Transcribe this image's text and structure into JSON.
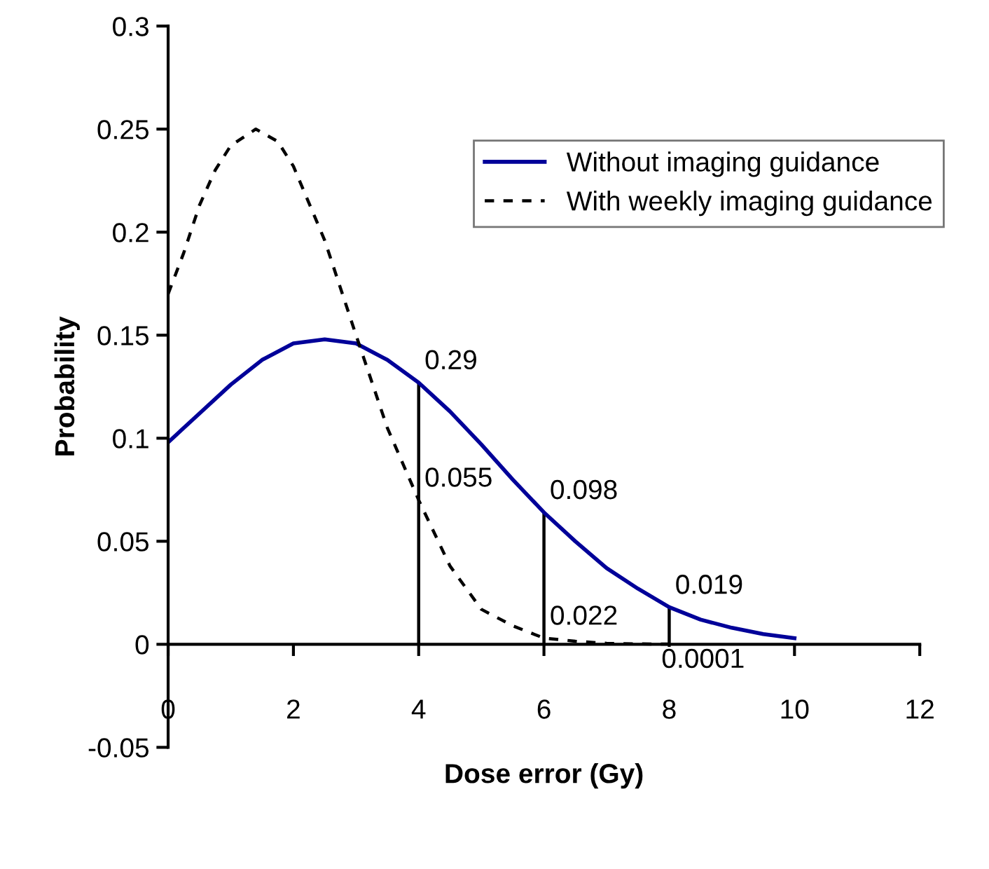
{
  "chart_data": {
    "type": "line",
    "xlabel": "Dose error (Gy)",
    "ylabel": "Probability",
    "xlim": [
      0,
      12
    ],
    "xticks": [
      0,
      2,
      4,
      6,
      8,
      10,
      12
    ],
    "ylim": [
      -0.05,
      0.3
    ],
    "yticks": [
      -0.05,
      0,
      0.05,
      0.1,
      0.15,
      0.2,
      0.25,
      0.3
    ],
    "legend": "top right",
    "grid": false,
    "marker": "none",
    "series": [
      {
        "name": "Without imaging guidance",
        "color": "#000099",
        "line_style": "solid",
        "x": [
          0,
          0.5,
          1,
          1.5,
          2,
          2.5,
          3,
          3.5,
          4,
          4.5,
          5,
          5.5,
          6,
          6.5,
          7,
          7.5,
          8,
          8.5,
          9,
          9.5,
          10
        ],
        "values": [
          0.098,
          0.112,
          0.126,
          0.138,
          0.146,
          0.148,
          0.146,
          0.138,
          0.127,
          0.113,
          0.097,
          0.08,
          0.064,
          0.05,
          0.037,
          0.027,
          0.018,
          0.012,
          0.008,
          0.005,
          0.003
        ]
      },
      {
        "name": "With weekly imaging guidance",
        "color": "#000000",
        "line_style": "dashed",
        "x": [
          0,
          0.25,
          0.5,
          0.75,
          1,
          1.4,
          1.75,
          2,
          2.5,
          3,
          3.5,
          4,
          4.5,
          5,
          5.5,
          6,
          6.5,
          7,
          7.5,
          8
        ],
        "values": [
          0.17,
          0.19,
          0.213,
          0.23,
          0.242,
          0.25,
          0.244,
          0.232,
          0.196,
          0.15,
          0.105,
          0.07,
          0.038,
          0.017,
          0.009,
          0.003,
          0.0015,
          0.0005,
          0.0002,
          0.0001
        ]
      },
      {
        "type": "bar",
        "color": "#000000",
        "x": [
          4,
          6,
          8
        ],
        "values": [
          0.127,
          0.064,
          0.018
        ]
      }
    ],
    "annotations": [
      {
        "text": "0.29",
        "x": 4,
        "y": 0.127
      },
      {
        "text": "0.055",
        "x": 4,
        "y": 0.07
      },
      {
        "text": "0.098",
        "x": 6,
        "y": 0.064
      },
      {
        "text": "0.022",
        "x": 6,
        "y": 0.003
      },
      {
        "text": "0.019",
        "x": 8,
        "y": 0.018
      },
      {
        "text": "0.0001",
        "x": 8,
        "y": 0.0001
      }
    ]
  }
}
